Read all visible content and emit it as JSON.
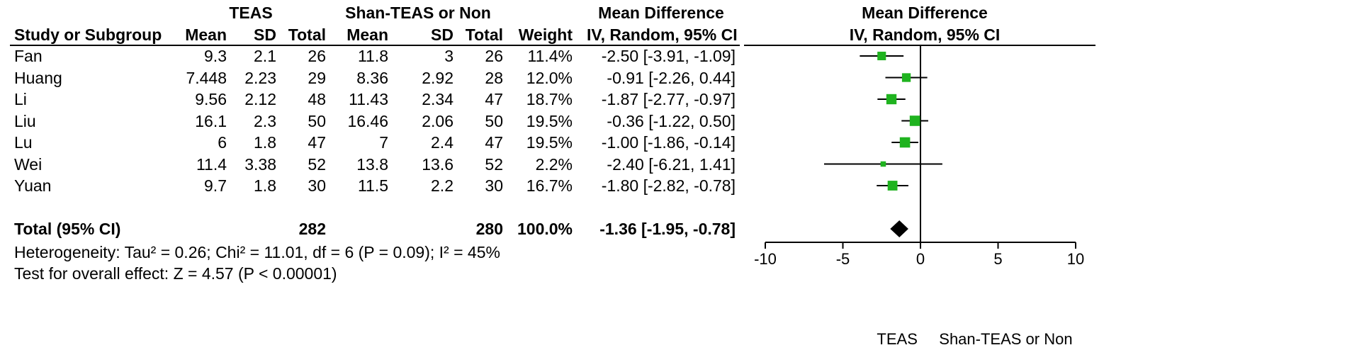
{
  "table": {
    "group1_label": "TEAS",
    "group2_label": "Shan-TEAS or Non",
    "effect_header": "Mean Difference",
    "effect_subheader": "IV, Random, 95% CI",
    "columns": [
      "Study or Subgroup",
      "Mean",
      "SD",
      "Total",
      "Mean",
      "SD",
      "Total",
      "Weight",
      "IV, Random, 95% CI"
    ],
    "rows": [
      {
        "study": "Fan",
        "m1": "9.3",
        "sd1": "2.1",
        "n1": "26",
        "m2": "11.8",
        "sd2": "3",
        "n2": "26",
        "weight": "11.4%",
        "ci": "-2.50 [-3.91, -1.09]"
      },
      {
        "study": "Huang",
        "m1": "7.448",
        "sd1": "2.23",
        "n1": "29",
        "m2": "8.36",
        "sd2": "2.92",
        "n2": "28",
        "weight": "12.0%",
        "ci": "-0.91 [-2.26, 0.44]"
      },
      {
        "study": "Li",
        "m1": "9.56",
        "sd1": "2.12",
        "n1": "48",
        "m2": "11.43",
        "sd2": "2.34",
        "n2": "47",
        "weight": "18.7%",
        "ci": "-1.87 [-2.77, -0.97]"
      },
      {
        "study": "Liu",
        "m1": "16.1",
        "sd1": "2.3",
        "n1": "50",
        "m2": "16.46",
        "sd2": "2.06",
        "n2": "50",
        "weight": "19.5%",
        "ci": "-0.36 [-1.22, 0.50]"
      },
      {
        "study": "Lu",
        "m1": "6",
        "sd1": "1.8",
        "n1": "47",
        "m2": "7",
        "sd2": "2.4",
        "n2": "47",
        "weight": "19.5%",
        "ci": "-1.00 [-1.86, -0.14]"
      },
      {
        "study": "Wei",
        "m1": "11.4",
        "sd1": "3.38",
        "n1": "52",
        "m2": "13.8",
        "sd2": "13.6",
        "n2": "52",
        "weight": "2.2%",
        "ci": "-2.40 [-6.21, 1.41]"
      },
      {
        "study": "Yuan",
        "m1": "9.7",
        "sd1": "1.8",
        "n1": "30",
        "m2": "11.5",
        "sd2": "2.2",
        "n2": "30",
        "weight": "16.7%",
        "ci": "-1.80 [-2.82, -0.78]"
      }
    ],
    "total": {
      "label": "Total (95% CI)",
      "n1": "282",
      "n2": "280",
      "weight": "100.0%",
      "ci": "-1.36 [-1.95, -0.78]"
    },
    "heterogeneity": "Heterogeneity: Tau² = 0.26; Chi² = 11.01, df = 6 (P = 0.09); I² = 45%",
    "overall_effect": "Test for overall effect: Z = 4.57 (P < 0.00001)"
  },
  "chart_data": {
    "type": "forest",
    "title": "Mean Difference",
    "subtitle": "IV, Random, 95% CI",
    "studies": [
      {
        "name": "Fan",
        "md": -2.5,
        "lo": -3.91,
        "hi": -1.09,
        "weight": 11.4
      },
      {
        "name": "Huang",
        "md": -0.91,
        "lo": -2.26,
        "hi": 0.44,
        "weight": 12.0
      },
      {
        "name": "Li",
        "md": -1.87,
        "lo": -2.77,
        "hi": -0.97,
        "weight": 18.7
      },
      {
        "name": "Liu",
        "md": -0.36,
        "lo": -1.22,
        "hi": 0.5,
        "weight": 19.5
      },
      {
        "name": "Lu",
        "md": -1.0,
        "lo": -1.86,
        "hi": -0.14,
        "weight": 19.5
      },
      {
        "name": "Wei",
        "md": -2.4,
        "lo": -6.21,
        "hi": 1.41,
        "weight": 2.2
      },
      {
        "name": "Yuan",
        "md": -1.8,
        "lo": -2.82,
        "hi": -0.78,
        "weight": 16.7
      }
    ],
    "pooled": {
      "md": -1.36,
      "lo": -1.95,
      "hi": -0.78
    },
    "xlim": [
      -10,
      10
    ],
    "xticks": [
      -10,
      -5,
      0,
      5,
      10
    ],
    "xlabel_left": "TEAS",
    "xlabel_right": "Shan-TEAS or Non",
    "marker_color": "#1fb31f"
  }
}
